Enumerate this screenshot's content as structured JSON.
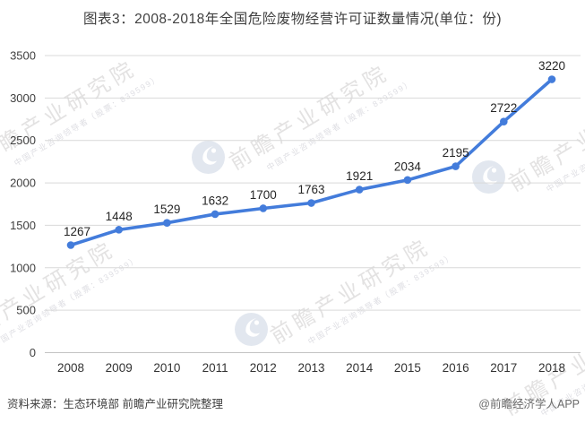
{
  "header": {
    "title": "图表3：2008-2018年全国危险废物经营许可证数量情况(单位：份)"
  },
  "chart_data": {
    "type": "line",
    "title": "2008-2018年全国危险废物经营许可证数量情况",
    "unit": "份",
    "categories": [
      "2008",
      "2009",
      "2010",
      "2011",
      "2012",
      "2013",
      "2014",
      "2015",
      "2016",
      "2017",
      "2018"
    ],
    "values": [
      1267,
      1448,
      1529,
      1632,
      1700,
      1763,
      1921,
      2034,
      2195,
      2722,
      3220
    ],
    "ylim": [
      0,
      3500
    ],
    "ytick_step": 500,
    "grid": true,
    "legend_position": "none",
    "line_color": "#437cdb",
    "gridline_color": "#d9d9d9",
    "axis_line_color": "#c3c3c3",
    "axis_label_color": "#404040",
    "data_label_color": "#262626"
  },
  "watermark": {
    "logo_text": "前瞻产业研究院",
    "logo_subtext": "中国产业咨询领导者（股票：839599）"
  },
  "footer": {
    "source": "资料来源：生态环境部 前瞻产业研究院整理",
    "credit": "@前瞻经济学人APP"
  }
}
